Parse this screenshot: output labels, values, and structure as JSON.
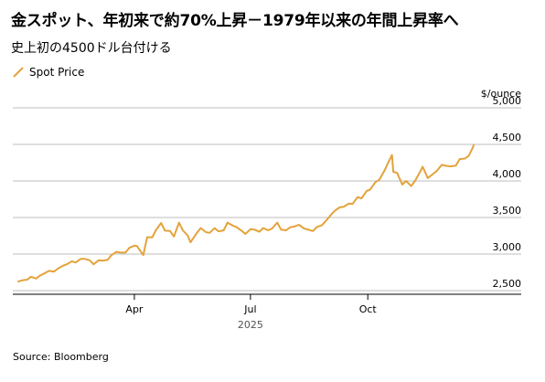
{
  "title": "金スポット、年初来で約70%上昇－1979年以来の年間上昇率へ",
  "subtitle": "史上初の4500ドル台付ける",
  "source": "Source: Bloomberg",
  "colors": {
    "line": "#E3A33B",
    "grid": "#bdbdbd",
    "text": "#000000"
  },
  "chart_data": {
    "type": "line",
    "title": "金スポット、年初来で約70%上昇－1979年以来の年間上昇率へ",
    "subtitle": "史上初の4500ドル台付ける",
    "ylabel": "$/ounce",
    "xlabel": "",
    "year_label": "2025",
    "ylim": [
      2500,
      5000
    ],
    "y_ticks": [
      2500,
      3000,
      3500,
      4000,
      4500,
      5000
    ],
    "y_tick_labels": [
      "2,500",
      "3,000",
      "3,500",
      "4,000",
      "4,500",
      "5,000"
    ],
    "x_range": [
      "2024-12-31",
      "2025-12-23"
    ],
    "x_ticks": [
      {
        "date": "2025-04-01",
        "label": "Apr"
      },
      {
        "date": "2025-07-01",
        "label": "Jul"
      },
      {
        "date": "2025-10-01",
        "label": "Oct"
      }
    ],
    "grid": true,
    "legend_position": "top-left",
    "series": [
      {
        "name": "Spot Price",
        "color": "#E3A33B",
        "points": [
          [
            "2024-12-31",
            2625
          ],
          [
            "2025-01-03",
            2640
          ],
          [
            "2025-01-07",
            2650
          ],
          [
            "2025-01-10",
            2690
          ],
          [
            "2025-01-14",
            2665
          ],
          [
            "2025-01-17",
            2705
          ],
          [
            "2025-01-21",
            2740
          ],
          [
            "2025-01-24",
            2770
          ],
          [
            "2025-01-28",
            2760
          ],
          [
            "2025-01-31",
            2800
          ],
          [
            "2025-02-04",
            2840
          ],
          [
            "2025-02-07",
            2860
          ],
          [
            "2025-02-11",
            2900
          ],
          [
            "2025-02-14",
            2885
          ],
          [
            "2025-02-18",
            2935
          ],
          [
            "2025-02-21",
            2935
          ],
          [
            "2025-02-25",
            2915
          ],
          [
            "2025-02-28",
            2860
          ],
          [
            "2025-03-04",
            2915
          ],
          [
            "2025-03-07",
            2910
          ],
          [
            "2025-03-11",
            2920
          ],
          [
            "2025-03-14",
            2985
          ],
          [
            "2025-03-18",
            3030
          ],
          [
            "2025-03-21",
            3020
          ],
          [
            "2025-03-25",
            3020
          ],
          [
            "2025-03-28",
            3085
          ],
          [
            "2025-04-01",
            3115
          ],
          [
            "2025-04-03",
            3110
          ],
          [
            "2025-04-08",
            2985
          ],
          [
            "2025-04-11",
            3230
          ],
          [
            "2025-04-15",
            3230
          ],
          [
            "2025-04-18",
            3330
          ],
          [
            "2025-04-22",
            3425
          ],
          [
            "2025-04-25",
            3320
          ],
          [
            "2025-04-29",
            3315
          ],
          [
            "2025-05-02",
            3240
          ],
          [
            "2025-05-06",
            3430
          ],
          [
            "2025-05-09",
            3325
          ],
          [
            "2025-05-13",
            3250
          ],
          [
            "2025-05-15",
            3160
          ],
          [
            "2025-05-20",
            3290
          ],
          [
            "2025-05-23",
            3355
          ],
          [
            "2025-05-27",
            3300
          ],
          [
            "2025-05-30",
            3290
          ],
          [
            "2025-06-03",
            3355
          ],
          [
            "2025-06-06",
            3310
          ],
          [
            "2025-06-10",
            3325
          ],
          [
            "2025-06-13",
            3430
          ],
          [
            "2025-06-17",
            3390
          ],
          [
            "2025-06-20",
            3370
          ],
          [
            "2025-06-24",
            3320
          ],
          [
            "2025-06-27",
            3275
          ],
          [
            "2025-07-01",
            3340
          ],
          [
            "2025-07-04",
            3335
          ],
          [
            "2025-07-08",
            3305
          ],
          [
            "2025-07-11",
            3355
          ],
          [
            "2025-07-15",
            3325
          ],
          [
            "2025-07-18",
            3350
          ],
          [
            "2025-07-22",
            3430
          ],
          [
            "2025-07-25",
            3335
          ],
          [
            "2025-07-29",
            3325
          ],
          [
            "2025-08-01",
            3365
          ],
          [
            "2025-08-05",
            3380
          ],
          [
            "2025-08-08",
            3400
          ],
          [
            "2025-08-12",
            3350
          ],
          [
            "2025-08-15",
            3335
          ],
          [
            "2025-08-19",
            3315
          ],
          [
            "2025-08-22",
            3370
          ],
          [
            "2025-08-26",
            3395
          ],
          [
            "2025-08-29",
            3450
          ],
          [
            "2025-09-02",
            3535
          ],
          [
            "2025-09-05",
            3590
          ],
          [
            "2025-09-09",
            3640
          ],
          [
            "2025-09-12",
            3645
          ],
          [
            "2025-09-16",
            3690
          ],
          [
            "2025-09-19",
            3685
          ],
          [
            "2025-09-23",
            3780
          ],
          [
            "2025-09-26",
            3760
          ],
          [
            "2025-09-30",
            3860
          ],
          [
            "2025-10-03",
            3885
          ],
          [
            "2025-10-07",
            3985
          ],
          [
            "2025-10-10",
            4015
          ],
          [
            "2025-10-14",
            4140
          ],
          [
            "2025-10-17",
            4250
          ],
          [
            "2025-10-20",
            4355
          ],
          [
            "2025-10-21",
            4125
          ],
          [
            "2025-10-24",
            4110
          ],
          [
            "2025-10-28",
            3950
          ],
          [
            "2025-10-31",
            4000
          ],
          [
            "2025-11-04",
            3930
          ],
          [
            "2025-11-07",
            4000
          ],
          [
            "2025-11-11",
            4125
          ],
          [
            "2025-11-13",
            4195
          ],
          [
            "2025-11-17",
            4040
          ],
          [
            "2025-11-20",
            4080
          ],
          [
            "2025-11-24",
            4135
          ],
          [
            "2025-11-28",
            4220
          ],
          [
            "2025-12-02",
            4205
          ],
          [
            "2025-12-05",
            4200
          ],
          [
            "2025-12-09",
            4210
          ],
          [
            "2025-12-12",
            4300
          ],
          [
            "2025-12-16",
            4305
          ],
          [
            "2025-12-19",
            4340
          ],
          [
            "2025-12-22",
            4445
          ],
          [
            "2025-12-23",
            4490
          ]
        ]
      }
    ]
  }
}
